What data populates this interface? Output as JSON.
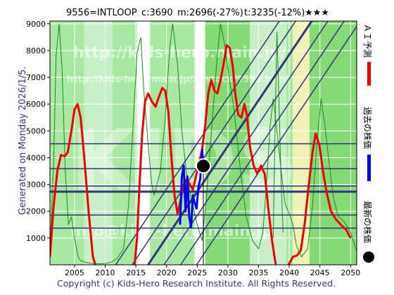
{
  "header": {
    "title": "9556=INTLOOP",
    "close": "c:3690",
    "m": "m:2696(-27%)",
    "t": "t:3235(-12%)",
    "stars": "★★★"
  },
  "side_label": "Generated on Monday 2026/1/5.",
  "footer": "Copyright (c) Kids-Hero Research Institute. All Rights Reserved.",
  "watermarks": [
    "http://kids-hero.main.jp/",
    "http://kids-hero.main.jp/ai/stock/9556.html",
    "KIDS",
    "info@kids-hero.main.jp"
  ],
  "legend": [
    {
      "label": "ＡＩ予測",
      "color": "#ee0000",
      "marker": "line"
    },
    {
      "label": "過去の株価",
      "color": "#0000ee",
      "marker": "line"
    },
    {
      "label": "最新の株価",
      "color": "#000000",
      "marker": "dot"
    }
  ],
  "chart_data": {
    "type": "line",
    "xlim": [
      2001,
      2051
    ],
    "ylim": [
      0,
      9100
    ],
    "xticks": [
      2005,
      2010,
      2015,
      2020,
      2025,
      2030,
      2035,
      2040,
      2045,
      2050
    ],
    "yticks": [
      1000,
      2000,
      3000,
      4000,
      5000,
      6000,
      7000,
      8000,
      9000
    ],
    "grid": true,
    "colors": {
      "ai": "#ee0000",
      "past": "#0000ee",
      "latest": "#000000",
      "band_light": "#c8f0c8",
      "band_mid": "#a9e8a2",
      "band_dark": "#86d977",
      "band_yellow": "#f2f2b8",
      "thin_line": "#1a8c1a",
      "trend": "#333377"
    },
    "bands": [
      {
        "x0": 2001.0,
        "x1": 2006.6,
        "kind": "mid"
      },
      {
        "x0": 2006.6,
        "x1": 2011.2,
        "kind": "light"
      },
      {
        "x0": 2011.2,
        "x1": 2015.2,
        "kind": "mid"
      },
      {
        "x0": 2015.2,
        "x1": 2017.3,
        "kind": "white"
      },
      {
        "x0": 2017.3,
        "x1": 2024.6,
        "kind": "mid"
      },
      {
        "x0": 2024.6,
        "x1": 2026.3,
        "kind": "white"
      },
      {
        "x0": 2026.3,
        "x1": 2033.6,
        "kind": "dark"
      },
      {
        "x0": 2033.6,
        "x1": 2039.5,
        "kind": "light"
      },
      {
        "x0": 2039.5,
        "x1": 2040.6,
        "kind": "mid"
      },
      {
        "x0": 2040.6,
        "x1": 2043.3,
        "kind": "yellow"
      },
      {
        "x0": 2043.3,
        "x1": 2051.0,
        "kind": "dark"
      }
    ],
    "thin_curve": [
      [
        2001,
        500
      ],
      [
        2001.6,
        3800
      ],
      [
        2002,
        7800
      ],
      [
        2002.5,
        9000
      ],
      [
        2003,
        7200
      ],
      [
        2003.5,
        3500
      ],
      [
        2004,
        1500
      ],
      [
        2004.5,
        1800
      ],
      [
        2005,
        1000
      ],
      [
        2005.6,
        300
      ],
      [
        2006,
        150
      ],
      [
        2007,
        80
      ],
      [
        2008,
        50
      ],
      [
        2009,
        40
      ],
      [
        2010,
        50
      ],
      [
        2011,
        100
      ],
      [
        2012,
        250
      ],
      [
        2013,
        600
      ],
      [
        2013.8,
        2200
      ],
      [
        2014.5,
        5000
      ],
      [
        2015.2,
        7900
      ],
      [
        2015.8,
        8500
      ],
      [
        2016.3,
        6500
      ],
      [
        2017,
        4500
      ],
      [
        2017.6,
        3000
      ],
      [
        2018,
        2600
      ],
      [
        2019,
        3500
      ],
      [
        2019.8,
        5500
      ],
      [
        2020.5,
        8000
      ],
      [
        2021,
        9000
      ],
      [
        2021.8,
        7500
      ],
      [
        2022.5,
        5000
      ],
      [
        2023.2,
        3500
      ],
      [
        2024,
        2500
      ],
      [
        2025,
        1500
      ],
      [
        2025.8,
        900
      ],
      [
        2026.5,
        2500
      ],
      [
        2027.5,
        5500
      ],
      [
        2028.2,
        7600
      ],
      [
        2028.8,
        9000
      ],
      [
        2029.5,
        8200
      ],
      [
        2030.2,
        7000
      ],
      [
        2031,
        5800
      ],
      [
        2031.6,
        4500
      ],
      [
        2032.2,
        3200
      ],
      [
        2033,
        1800
      ],
      [
        2034,
        900
      ],
      [
        2035,
        600
      ],
      [
        2035.7,
        1200
      ],
      [
        2036.3,
        3000
      ],
      [
        2036.9,
        5200
      ],
      [
        2037.4,
        6200
      ],
      [
        2038,
        5000
      ],
      [
        2038.7,
        3500
      ],
      [
        2039.3,
        2300
      ],
      [
        2040,
        1900
      ],
      [
        2040.6,
        1500
      ],
      [
        2041.2,
        700
      ],
      [
        2042,
        300
      ],
      [
        2043,
        600
      ],
      [
        2043.8,
        2200
      ],
      [
        2044.5,
        4500
      ],
      [
        2045.2,
        6200
      ],
      [
        2045.8,
        5200
      ],
      [
        2046.5,
        3800
      ],
      [
        2047.2,
        2500
      ],
      [
        2048,
        1800
      ],
      [
        2049,
        1600
      ],
      [
        2050,
        1200
      ],
      [
        2051,
        500
      ]
    ],
    "thin_curve_2": [
      [
        2037.4,
        1000
      ],
      [
        2037.6,
        4000
      ],
      [
        2037.8,
        6400
      ],
      [
        2038,
        8700
      ],
      [
        2038.3,
        6300
      ],
      [
        2038.7,
        3000
      ],
      [
        2039,
        1200
      ]
    ],
    "ai_forecast": [
      [
        2001.0,
        300
      ],
      [
        2001.6,
        2200
      ],
      [
        2002.2,
        3500
      ],
      [
        2002.8,
        4100
      ],
      [
        2003.4,
        4050
      ],
      [
        2003.9,
        4200
      ],
      [
        2004.5,
        5000
      ],
      [
        2005,
        5800
      ],
      [
        2005.5,
        6000
      ],
      [
        2006,
        5500
      ],
      [
        2006.6,
        4000
      ],
      [
        2007.3,
        2000
      ],
      [
        2008,
        300
      ],
      [
        2008.4,
        0
      ]
    ],
    "ai_forecast_2": [
      [
        2014.8,
        0
      ],
      [
        2015.2,
        1000
      ],
      [
        2015.6,
        3000
      ],
      [
        2016,
        4800
      ],
      [
        2016.5,
        6100
      ],
      [
        2017,
        6400
      ],
      [
        2017.6,
        6100
      ],
      [
        2018.2,
        5900
      ],
      [
        2018.8,
        6300
      ],
      [
        2019.3,
        6600
      ],
      [
        2019.8,
        6500
      ],
      [
        2020.3,
        5700
      ],
      [
        2020.8,
        4000
      ],
      [
        2021.3,
        2600
      ],
      [
        2021.8,
        1900
      ],
      [
        2022.3,
        2400
      ],
      [
        2022.8,
        3000
      ],
      [
        2023.3,
        3200
      ],
      [
        2023.8,
        3000
      ],
      [
        2024.3,
        2800
      ],
      [
        2024.8,
        3300
      ],
      [
        2025.3,
        3800
      ],
      [
        2025.8,
        4300
      ],
      [
        2026.3,
        5200
      ],
      [
        2026.8,
        6400
      ],
      [
        2027.3,
        6900
      ],
      [
        2027.8,
        6500
      ],
      [
        2028.3,
        6400
      ],
      [
        2028.8,
        6900
      ],
      [
        2029.3,
        7500
      ],
      [
        2029.8,
        8200
      ],
      [
        2030.3,
        8100
      ],
      [
        2030.8,
        7400
      ],
      [
        2031.2,
        6400
      ],
      [
        2031.7,
        5600
      ],
      [
        2032.2,
        5500
      ],
      [
        2032.7,
        6000
      ],
      [
        2033.1,
        5600
      ],
      [
        2033.6,
        4400
      ],
      [
        2034.2,
        3700
      ],
      [
        2034.8,
        3400
      ],
      [
        2035.4,
        3700
      ],
      [
        2036,
        3400
      ],
      [
        2036.6,
        2100
      ],
      [
        2037.2,
        900
      ],
      [
        2037.8,
        0
      ]
    ],
    "ai_forecast_3": [
      [
        2039.9,
        0
      ],
      [
        2040.6,
        300
      ],
      [
        2041.3,
        350
      ],
      [
        2041.9,
        550
      ],
      [
        2042.5,
        1500
      ],
      [
        2043.2,
        3000
      ],
      [
        2043.8,
        4200
      ],
      [
        2044.3,
        4900
      ],
      [
        2044.9,
        4500
      ],
      [
        2045.5,
        3500
      ],
      [
        2046.1,
        2700
      ],
      [
        2046.8,
        2000
      ],
      [
        2047.6,
        1700
      ],
      [
        2048.4,
        1500
      ],
      [
        2049.3,
        1300
      ],
      [
        2050,
        1000
      ]
    ],
    "past_price": [
      [
        2022.2,
        1500
      ],
      [
        2022.5,
        3300
      ],
      [
        2022.8,
        3700
      ],
      [
        2023.1,
        2000
      ],
      [
        2023.4,
        3300
      ],
      [
        2023.7,
        1800
      ],
      [
        2024,
        1400
      ],
      [
        2024.3,
        2600
      ],
      [
        2024.6,
        2300
      ],
      [
        2024.9,
        2100
      ],
      [
        2025.2,
        2900
      ],
      [
        2025.5,
        3200
      ],
      [
        2025.8,
        4300
      ],
      [
        2026.0,
        3690
      ]
    ],
    "latest": {
      "x": 2026.0,
      "y": 3690
    },
    "hlines": [
      {
        "y": 4520,
        "width": 1.5
      },
      {
        "y": 3590,
        "width": 1.5
      },
      {
        "y": 2940,
        "width": 1.5
      },
      {
        "y": 2730,
        "width": 3
      },
      {
        "y": 1860,
        "width": 1.5
      },
      {
        "y": 1370,
        "width": 1.5
      }
    ],
    "trendlines": [
      {
        "x0": 2011.7,
        "y0": 0,
        "x1": 2051.0,
        "y1": 13400,
        "width": 1.5
      },
      {
        "x0": 2014.4,
        "y0": 0,
        "x1": 2051.0,
        "y1": 12500,
        "width": 1.5
      },
      {
        "x0": 2017.0,
        "y0": 0,
        "x1": 2051.0,
        "y1": 11600,
        "width": 3
      },
      {
        "x0": 2019.6,
        "y0": 0,
        "x1": 2051.0,
        "y1": 10700,
        "width": 1.5
      },
      {
        "x0": 2022.3,
        "y0": 0,
        "x1": 2051.0,
        "y1": 9800,
        "width": 1.5
      },
      {
        "x0": 2024.9,
        "y0": 0,
        "x1": 2051.0,
        "y1": 8900,
        "width": 1.5
      }
    ]
  }
}
